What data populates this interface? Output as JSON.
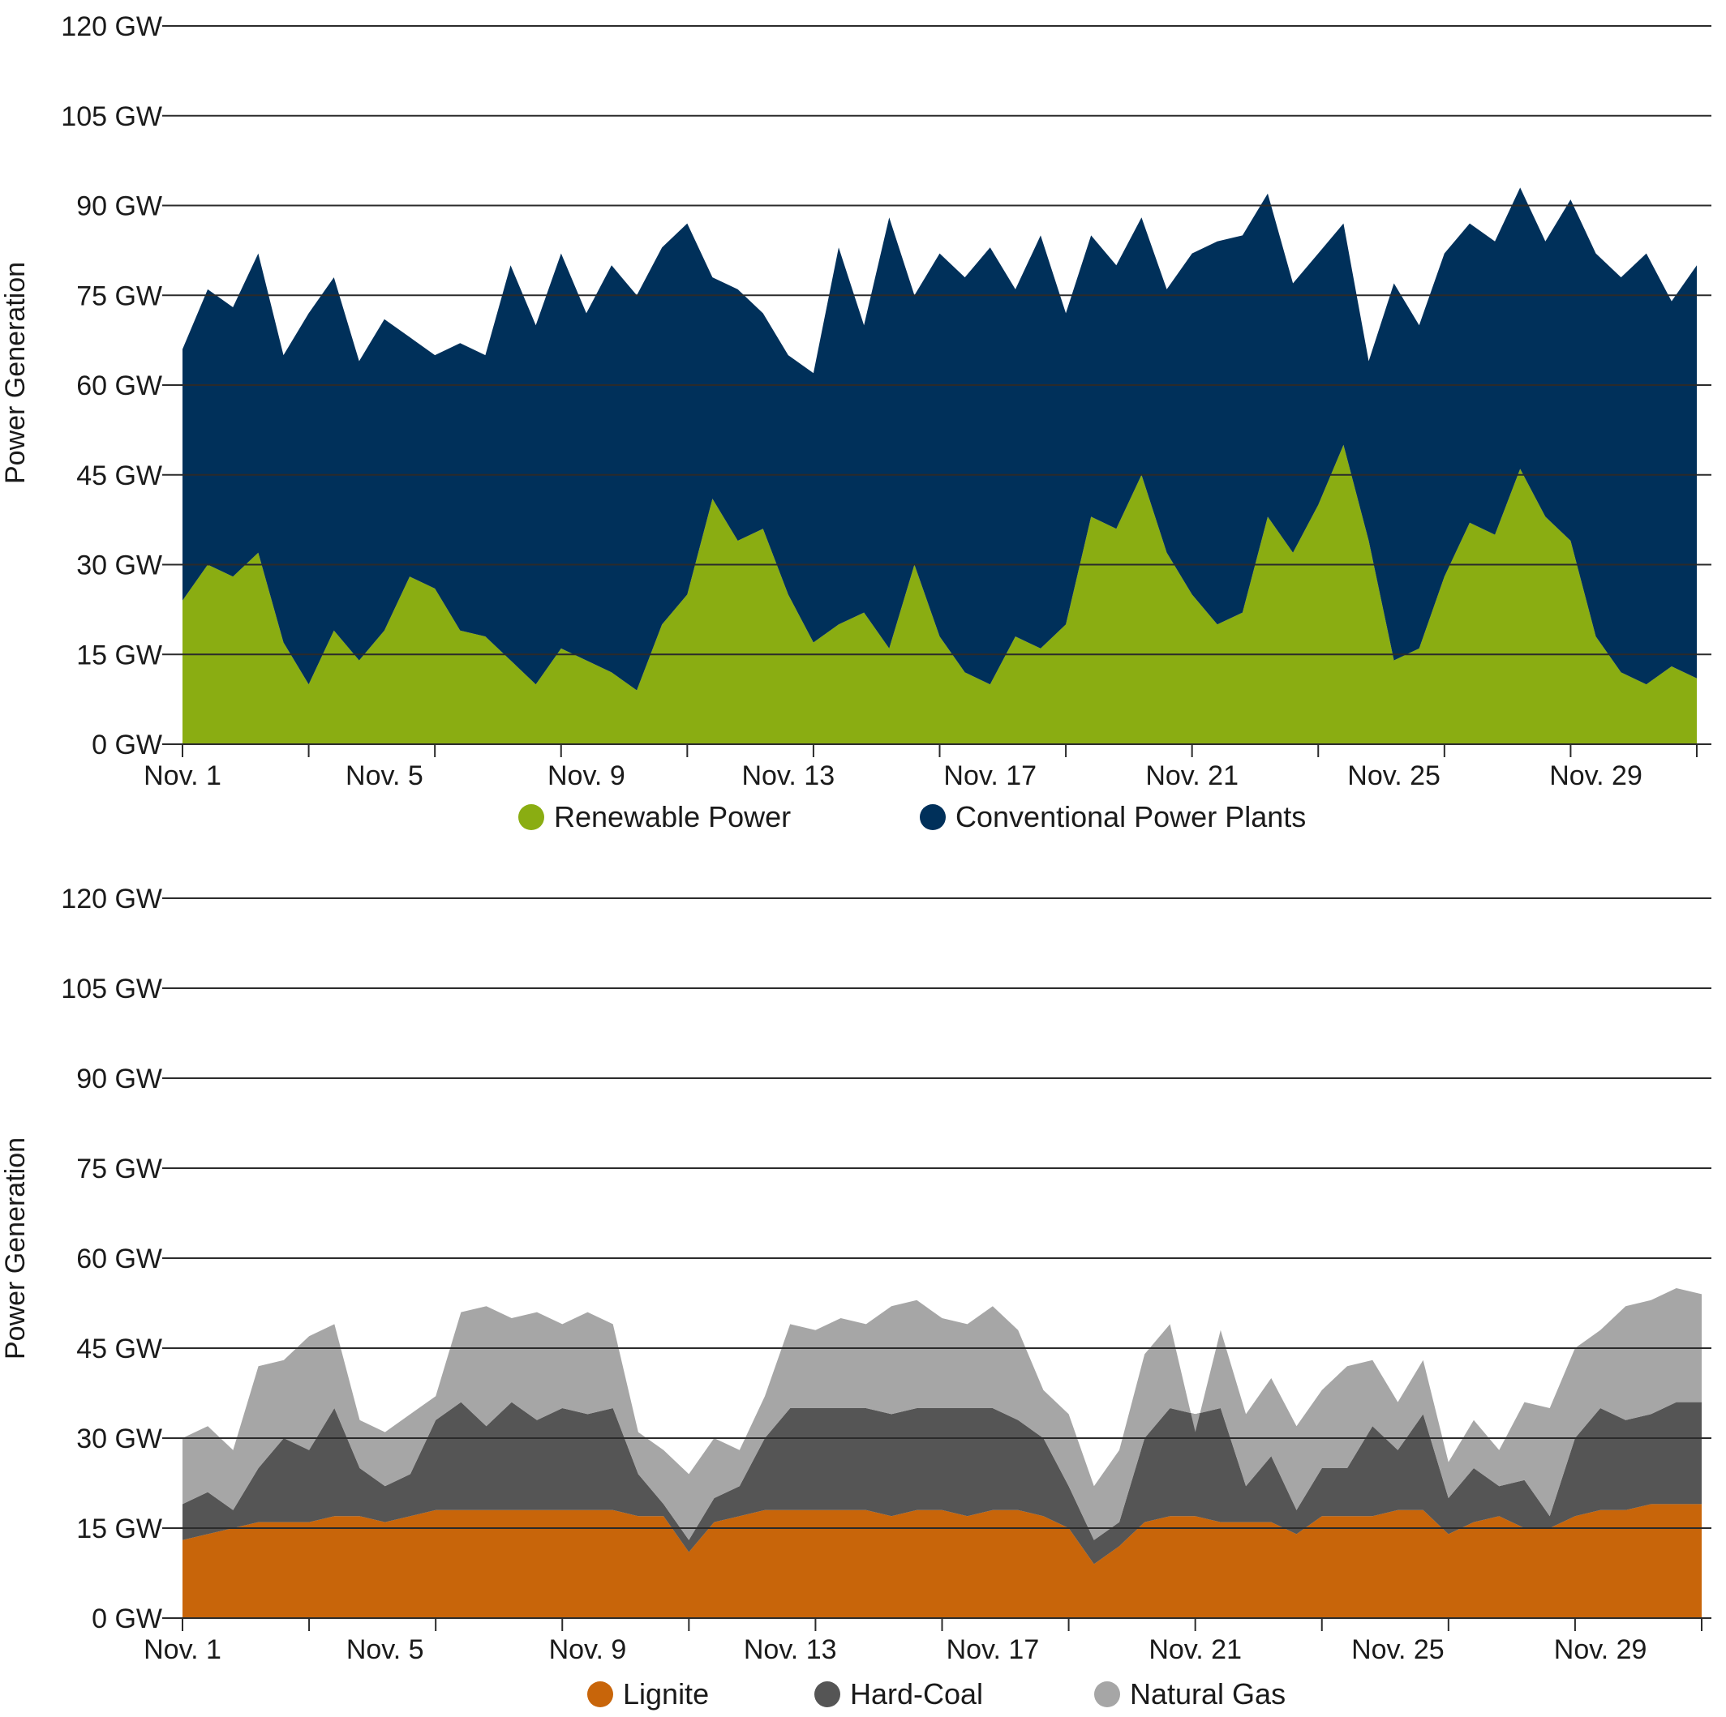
{
  "colors": {
    "renewable": "#8aad12",
    "conventional": "#00305a",
    "lignite": "#c8650a",
    "hardcoal": "#555555",
    "gas": "#a6a6a6"
  },
  "chart_data": [
    {
      "type": "area",
      "stacked": true,
      "ylabel": "Power Generation",
      "yticks": [
        "0 GW",
        "15 GW",
        "30 GW",
        "45 GW",
        "60 GW",
        "75 GW",
        "90 GW",
        "105 GW",
        "120 GW"
      ],
      "ylim": [
        0,
        120
      ],
      "xlim": [
        1,
        31
      ],
      "xticks": [
        {
          "day": 1,
          "label": "Nov. 1"
        },
        {
          "day": 5,
          "label": "Nov. 5"
        },
        {
          "day": 9,
          "label": "Nov. 9"
        },
        {
          "day": 13,
          "label": "Nov. 13"
        },
        {
          "day": 17,
          "label": "Nov. 17"
        },
        {
          "day": 21,
          "label": "Nov. 21"
        },
        {
          "day": 25,
          "label": "Nov. 25"
        },
        {
          "day": 29,
          "label": "Nov. 29"
        }
      ],
      "grid": true,
      "legend_position": "bottom",
      "x": [
        1,
        1.5,
        2,
        2.5,
        3,
        3.5,
        4,
        4.5,
        5,
        5.5,
        6,
        6.5,
        7,
        7.5,
        8,
        8.5,
        9,
        9.5,
        10,
        10.5,
        11,
        11.5,
        12,
        12.5,
        13,
        13.5,
        14,
        14.5,
        15,
        15.5,
        16,
        16.5,
        17,
        17.5,
        18,
        18.5,
        19,
        19.5,
        20,
        20.5,
        21,
        21.5,
        22,
        22.5,
        23,
        23.5,
        24,
        24.5,
        25,
        25.5,
        26,
        26.5,
        27,
        27.5,
        28,
        28.5,
        29,
        29.5,
        30,
        30.5,
        31
      ],
      "series": [
        {
          "name": "Renewable Power",
          "color_key": "renewable",
          "values": [
            24,
            30,
            28,
            32,
            17,
            10,
            19,
            14,
            19,
            28,
            26,
            19,
            18,
            14,
            10,
            16,
            14,
            12,
            9,
            20,
            25,
            41,
            34,
            36,
            25,
            17,
            20,
            22,
            16,
            30,
            18,
            12,
            10,
            18,
            16,
            20,
            38,
            36,
            45,
            32,
            25,
            20,
            22,
            38,
            32,
            40,
            50,
            34,
            14,
            16,
            28,
            37,
            35,
            46,
            38,
            34,
            18,
            12,
            10,
            13,
            11
          ]
        },
        {
          "name": "Conventional Power Plants",
          "color_key": "conventional",
          "total_values": [
            66,
            76,
            73,
            82,
            65,
            72,
            78,
            64,
            71,
            68,
            65,
            67,
            65,
            80,
            70,
            82,
            72,
            80,
            75,
            83,
            87,
            78,
            76,
            72,
            65,
            62,
            83,
            70,
            88,
            75,
            82,
            78,
            83,
            76,
            85,
            72,
            85,
            80,
            88,
            76,
            82,
            84,
            85,
            92,
            77,
            82,
            87,
            64,
            77,
            70,
            82,
            87,
            84,
            93,
            84,
            91,
            82,
            78,
            82,
            74,
            80
          ]
        }
      ]
    },
    {
      "type": "area",
      "stacked": true,
      "ylabel": "Power Generation",
      "yticks": [
        "0 GW",
        "15 GW",
        "30 GW",
        "45 GW",
        "60 GW",
        "75 GW",
        "90 GW",
        "105 GW",
        "120 GW"
      ],
      "ylim": [
        0,
        120
      ],
      "xlim": [
        1,
        31
      ],
      "xticks": [
        {
          "day": 1,
          "label": "Nov. 1"
        },
        {
          "day": 5,
          "label": "Nov. 5"
        },
        {
          "day": 9,
          "label": "Nov. 9"
        },
        {
          "day": 13,
          "label": "Nov. 13"
        },
        {
          "day": 17,
          "label": "Nov. 17"
        },
        {
          "day": 21,
          "label": "Nov. 21"
        },
        {
          "day": 25,
          "label": "Nov. 25"
        },
        {
          "day": 29,
          "label": "Nov. 29"
        }
      ],
      "grid": true,
      "legend_position": "bottom",
      "x": [
        1,
        1.5,
        2,
        2.5,
        3,
        3.5,
        4,
        4.5,
        5,
        5.5,
        6,
        6.5,
        7,
        7.5,
        8,
        8.5,
        9,
        9.5,
        10,
        10.5,
        11,
        11.5,
        12,
        12.5,
        13,
        13.5,
        14,
        14.5,
        15,
        15.5,
        16,
        16.5,
        17,
        17.5,
        18,
        18.5,
        19,
        19.5,
        20,
        20.5,
        21,
        21.5,
        22,
        22.5,
        23,
        23.5,
        24,
        24.5,
        25,
        25.5,
        26,
        26.5,
        27,
        27.5,
        28,
        28.5,
        29,
        29.5,
        30,
        30.5,
        31
      ],
      "series": [
        {
          "name": "Lignite",
          "color_key": "lignite",
          "values": [
            13,
            14,
            15,
            16,
            16,
            16,
            17,
            17,
            16,
            17,
            18,
            18,
            18,
            18,
            18,
            18,
            18,
            18,
            17,
            17,
            11,
            16,
            17,
            18,
            18,
            18,
            18,
            18,
            17,
            18,
            18,
            17,
            18,
            18,
            17,
            15,
            9,
            12,
            16,
            17,
            17,
            16,
            16,
            16,
            14,
            17,
            17,
            17,
            18,
            18,
            14,
            16,
            17,
            15,
            15,
            17,
            18,
            18,
            19,
            19,
            19
          ]
        },
        {
          "name": "Hard-Coal",
          "color_key": "hardcoal",
          "values": [
            19,
            21,
            18,
            25,
            30,
            28,
            35,
            25,
            22,
            24,
            33,
            36,
            32,
            36,
            33,
            35,
            34,
            35,
            24,
            19,
            13,
            20,
            22,
            30,
            35,
            35,
            35,
            35,
            34,
            35,
            35,
            35,
            35,
            33,
            30,
            22,
            13,
            16,
            30,
            35,
            34,
            35,
            22,
            27,
            18,
            25,
            25,
            32,
            28,
            34,
            20,
            25,
            22,
            23,
            17,
            30,
            35,
            33,
            34,
            36,
            36
          ]
        },
        {
          "name": "Natural Gas",
          "color_key": "gas",
          "values": [
            30,
            32,
            28,
            42,
            43,
            47,
            49,
            33,
            31,
            34,
            37,
            51,
            52,
            50,
            51,
            49,
            51,
            49,
            31,
            28,
            24,
            30,
            28,
            37,
            49,
            48,
            50,
            49,
            52,
            53,
            50,
            49,
            52,
            48,
            38,
            34,
            22,
            28,
            44,
            49,
            31,
            48,
            34,
            40,
            32,
            38,
            42,
            43,
            36,
            43,
            26,
            33,
            28,
            36,
            35,
            45,
            48,
            52,
            53,
            55,
            54
          ]
        }
      ]
    }
  ],
  "legends": [
    [
      {
        "label": "Renewable Power",
        "color_key": "renewable"
      },
      {
        "label": "Conventional Power Plants",
        "color_key": "conventional"
      }
    ],
    [
      {
        "label": "Lignite",
        "color_key": "lignite"
      },
      {
        "label": "Hard-Coal",
        "color_key": "hardcoal"
      },
      {
        "label": "Natural Gas",
        "color_key": "gas"
      }
    ]
  ]
}
